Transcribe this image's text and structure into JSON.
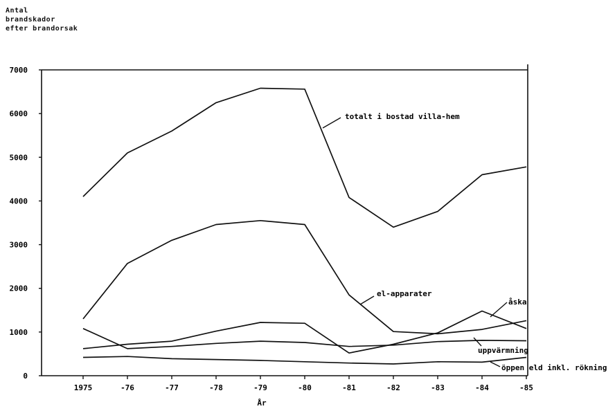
{
  "chart_data": {
    "type": "line",
    "ylabel_lines": [
      "Antal",
      "brandskador",
      "efter brandorsak"
    ],
    "xlabel": "År",
    "x": [
      1975,
      1976,
      1977,
      1978,
      1979,
      1980,
      1981,
      1982,
      1983,
      1984,
      1985
    ],
    "x_tick_labels": [
      "1975",
      "-76",
      "-77",
      "-78",
      "-79",
      "-80",
      "-81",
      "-82",
      "-83",
      "-84",
      "-85"
    ],
    "y_ticks": [
      0,
      1000,
      2000,
      3000,
      4000,
      5000,
      6000,
      7000
    ],
    "ylim": [
      0,
      7000
    ],
    "grid": false,
    "series": [
      {
        "name": "totalt i bostad villa-hem",
        "values": [
          4100,
          5100,
          5600,
          6250,
          6580,
          6560,
          4080,
          3400,
          3760,
          4600,
          4780
        ]
      },
      {
        "name": "el-apparater",
        "values": [
          1300,
          2570,
          3100,
          3460,
          3550,
          3460,
          1850,
          1010,
          960,
          1060,
          1260
        ]
      },
      {
        "name": "åska",
        "values": [
          620,
          720,
          790,
          1020,
          1220,
          1200,
          520,
          720,
          980,
          1480,
          1080
        ]
      },
      {
        "name": "uppvärmning",
        "values": [
          1080,
          620,
          670,
          740,
          790,
          760,
          670,
          700,
          780,
          810,
          800
        ]
      },
      {
        "name": "öppen eld inkl. rökning",
        "values": [
          420,
          440,
          390,
          370,
          350,
          320,
          290,
          270,
          320,
          310,
          420
        ]
      }
    ]
  }
}
